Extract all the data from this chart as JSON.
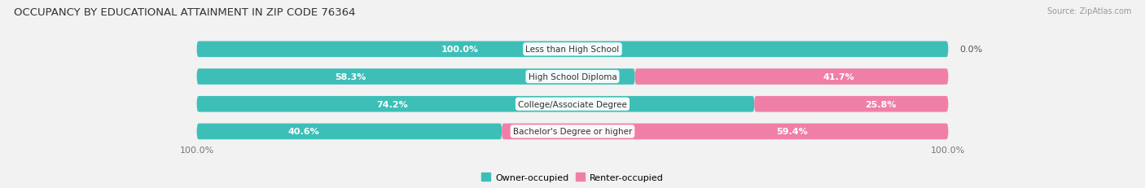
{
  "title": "OCCUPANCY BY EDUCATIONAL ATTAINMENT IN ZIP CODE 76364",
  "source": "Source: ZipAtlas.com",
  "categories": [
    "Less than High School",
    "High School Diploma",
    "College/Associate Degree",
    "Bachelor's Degree or higher"
  ],
  "owner_pct": [
    100.0,
    58.3,
    74.2,
    40.6
  ],
  "renter_pct": [
    0.0,
    41.7,
    25.8,
    59.4
  ],
  "owner_color": "#3DBFB8",
  "renter_color": "#F07FA8",
  "bar_height": 0.58,
  "background_color": "#f2f2f2",
  "bar_bg_color": "#e2e2e2",
  "title_fontsize": 9.5,
  "label_fontsize": 8.0,
  "category_fontsize": 7.5,
  "legend_fontsize": 8.0,
  "source_fontsize": 7.0,
  "owner_label_outside_color": "#555555",
  "owner_label_inside_color": "#ffffff",
  "renter_label_outside_color": "#555555",
  "renter_label_inside_color": "#ffffff"
}
